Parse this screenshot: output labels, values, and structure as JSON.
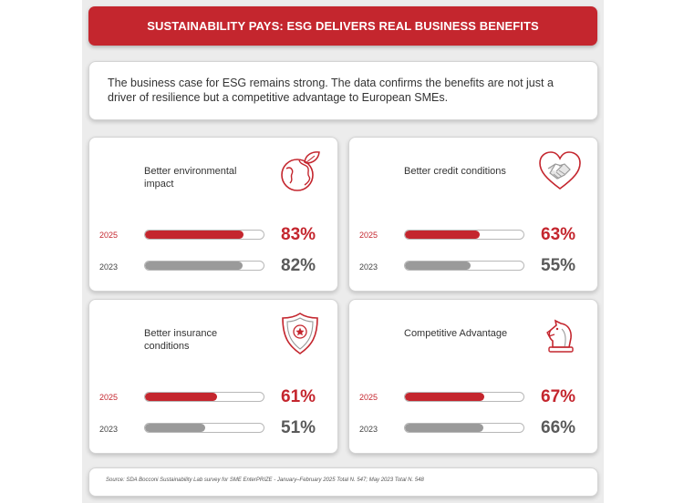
{
  "header": {
    "title": "SUSTAINABILITY PAYS: ESG DELIVERS REAL BUSINESS BENEFITS"
  },
  "intro": {
    "text": "The business case for ESG remains strong. The data confirms the benefits are not just a driver of resilience but a competitive advantage to European SMEs."
  },
  "colors": {
    "accent": "#c4262e",
    "grey": "#9a9a9a"
  },
  "metrics": [
    {
      "title": "Better environmental impact",
      "icon": "earth-leaf-icon",
      "rows": [
        {
          "year": "2025",
          "value": 83,
          "label": "83%"
        },
        {
          "year": "2023",
          "value": 82,
          "label": "82%"
        }
      ]
    },
    {
      "title": "Better credit conditions",
      "icon": "heart-handshake-icon",
      "rows": [
        {
          "year": "2025",
          "value": 63,
          "label": "63%"
        },
        {
          "year": "2023",
          "value": 55,
          "label": "55%"
        }
      ]
    },
    {
      "title": "Better insurance conditions",
      "icon": "shield-star-icon",
      "rows": [
        {
          "year": "2025",
          "value": 61,
          "label": "61%"
        },
        {
          "year": "2023",
          "value": 51,
          "label": "51%"
        }
      ]
    },
    {
      "title": "Competitive Advantage",
      "icon": "chess-knight-icon",
      "rows": [
        {
          "year": "2025",
          "value": 67,
          "label": "67%"
        },
        {
          "year": "2023",
          "value": 66,
          "label": "66%"
        }
      ]
    }
  ],
  "chart_data": {
    "type": "bar",
    "categories": [
      "Better environmental impact",
      "Better credit conditions",
      "Better insurance conditions",
      "Competitive Advantage"
    ],
    "series": [
      {
        "name": "2025",
        "values": [
          83,
          63,
          61,
          67
        ]
      },
      {
        "name": "2023",
        "values": [
          82,
          55,
          51,
          66
        ]
      }
    ],
    "ylim": [
      0,
      100
    ]
  },
  "footer": {
    "source": "Source: SDA Bocconi Sustainability Lab survey for SME EnterPRIZE - January–February 2025 Total N. 547; May 2023 Total N. 548"
  }
}
